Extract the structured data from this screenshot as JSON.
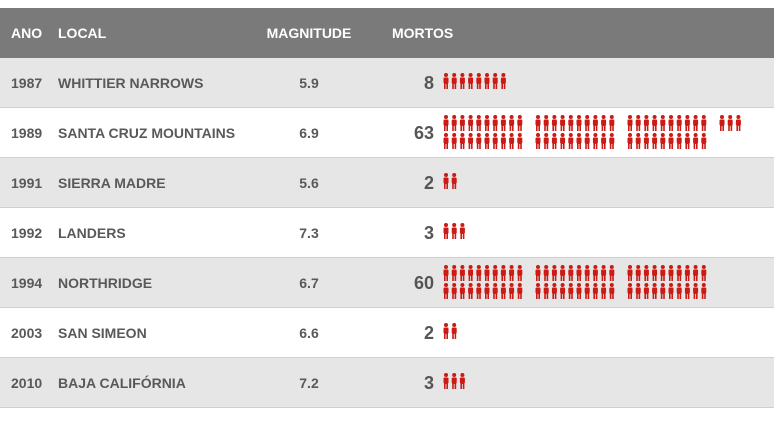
{
  "headers": {
    "year": "ANO",
    "local": "LOCAL",
    "magnitude": "MAGNITUDE",
    "deaths": "MORTOS"
  },
  "rows": [
    {
      "year": "1987",
      "local": "WHITTIER NARROWS",
      "magnitude": "5.9",
      "deaths": "8"
    },
    {
      "year": "1989",
      "local": "SANTA CRUZ MOUNTAINS",
      "magnitude": "6.9",
      "deaths": "63"
    },
    {
      "year": "1991",
      "local": "SIERRA MADRE",
      "magnitude": "5.6",
      "deaths": "2"
    },
    {
      "year": "1992",
      "local": "LANDERS",
      "magnitude": "7.3",
      "deaths": "3"
    },
    {
      "year": "1994",
      "local": "NORTHRIDGE",
      "magnitude": "6.7",
      "deaths": "60"
    },
    {
      "year": "2003",
      "local": "SAN SIMEON",
      "magnitude": "6.6",
      "deaths": "2"
    },
    {
      "year": "2010",
      "local": "BAJA CALIFÓRNIA",
      "magnitude": "7.2",
      "deaths": "3"
    }
  ],
  "colors": {
    "header_bg": "#7a7a7a",
    "row_odd_bg": "#e6e6e6",
    "row_even_bg": "#ffffff",
    "icon": "#cc1a14",
    "text": "#595959"
  },
  "icon_name": "person-icon",
  "chart_data": {
    "type": "table",
    "columns": [
      "ANO",
      "LOCAL",
      "MAGNITUDE",
      "MORTOS"
    ],
    "rows": [
      [
        "1987",
        "WHITTIER NARROWS",
        5.9,
        8
      ],
      [
        "1989",
        "SANTA CRUZ MOUNTAINS",
        6.9,
        63
      ],
      [
        "1991",
        "SIERRA MADRE",
        5.6,
        2
      ],
      [
        "1992",
        "LANDERS",
        7.3,
        3
      ],
      [
        "1994",
        "NORTHRIDGE",
        6.7,
        60
      ],
      [
        "2003",
        "SAN SIMEON",
        6.6,
        2
      ],
      [
        "2010",
        "BAJA CALIFÓRNIA",
        7.2,
        3
      ]
    ],
    "pictogram": {
      "icon": "person",
      "units_per_icon": 1,
      "group_size": 10
    }
  }
}
